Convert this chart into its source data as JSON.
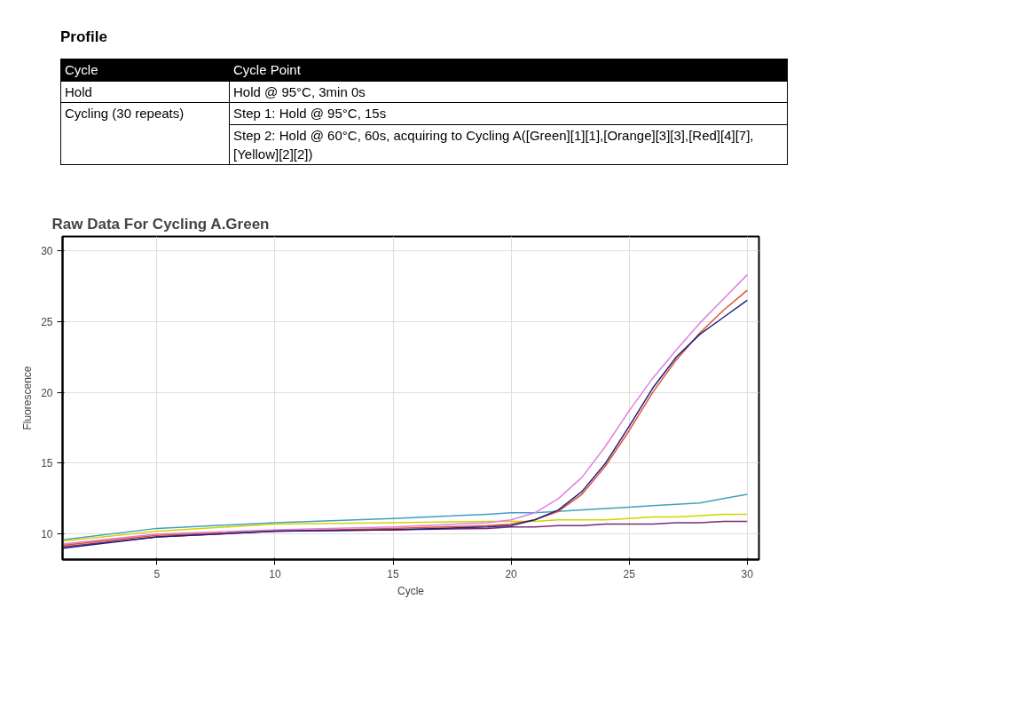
{
  "chart_data": [
    {
      "type": "other",
      "title": "Profile",
      "annotations": [
        "Cycle",
        "Cycle Point",
        "Hold",
        "Hold @ 95°C, 3min 0s",
        "Cycling (30 repeats)",
        "Step 1: Hold @ 95°C, 15s",
        "Step 2: Hold @ 60°C, 60s, acquiring to Cycling A([Green][1][1],[Orange][3][3],[Red][4][7],[Yellow][2][2])"
      ]
    },
    {
      "type": "line",
      "title": "Raw Data For Cycling A.Green",
      "xlabel": "Cycle",
      "ylabel": "Fluorescence",
      "xlim": [
        1,
        30.5
      ],
      "ylim": [
        8.2,
        31
      ],
      "xticks": [
        5,
        10,
        15,
        20,
        25,
        30
      ],
      "yticks": [
        10,
        15,
        20,
        25,
        30
      ],
      "grid": true,
      "x": [
        1,
        5,
        10,
        15,
        19,
        20,
        21,
        22,
        23,
        24,
        25,
        26,
        27,
        28,
        29,
        30
      ],
      "series": [
        {
          "color": "#3fa0c0",
          "values": [
            9.6,
            10.4,
            10.8,
            11.1,
            11.4,
            11.5,
            11.5,
            11.6,
            11.7,
            11.8,
            11.9,
            12.0,
            12.1,
            12.2,
            12.5,
            12.8
          ]
        },
        {
          "color": "#d4d400",
          "values": [
            9.5,
            10.2,
            10.7,
            10.8,
            10.9,
            10.9,
            10.9,
            11.0,
            11.0,
            11.0,
            11.1,
            11.2,
            11.2,
            11.3,
            11.4,
            11.4
          ]
        },
        {
          "color": "#7a2a7a",
          "values": [
            9.1,
            9.8,
            10.2,
            10.3,
            10.4,
            10.5,
            10.5,
            10.6,
            10.6,
            10.7,
            10.7,
            10.7,
            10.8,
            10.8,
            10.9,
            10.9
          ]
        },
        {
          "color": "#e07fe0",
          "values": [
            9.3,
            10.0,
            10.3,
            10.5,
            10.8,
            11.0,
            11.5,
            12.5,
            14.0,
            16.2,
            18.7,
            21.0,
            23.0,
            24.9,
            26.6,
            28.3
          ]
        },
        {
          "color": "#e05030",
          "values": [
            9.2,
            9.9,
            10.2,
            10.4,
            10.6,
            10.7,
            11.0,
            11.6,
            12.8,
            14.8,
            17.3,
            20.0,
            22.3,
            24.2,
            25.8,
            27.2
          ]
        },
        {
          "color": "#202080",
          "values": [
            9.0,
            9.8,
            10.2,
            10.3,
            10.5,
            10.6,
            11.0,
            11.7,
            13.0,
            15.0,
            17.6,
            20.3,
            22.5,
            24.1,
            25.3,
            26.5
          ]
        }
      ]
    }
  ]
}
